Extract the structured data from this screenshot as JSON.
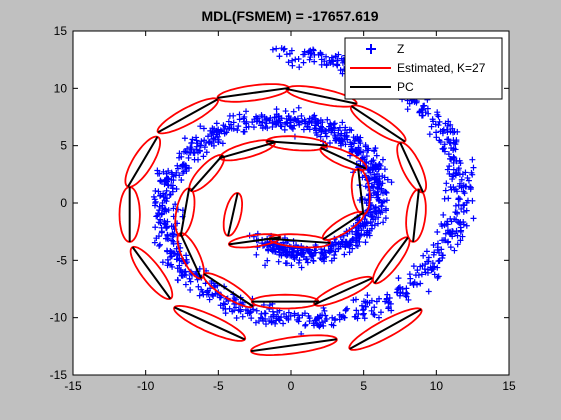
{
  "chart_data": {
    "type": "scatter",
    "title": "MDL(FSMEM) = -17657.619",
    "xlabel": "",
    "ylabel": "",
    "xlim": [
      -15,
      15
    ],
    "ylim": [
      -15,
      15
    ],
    "xticks": [
      -15,
      -10,
      -5,
      0,
      5,
      10,
      15
    ],
    "yticks": [
      -15,
      -10,
      -5,
      0,
      5,
      10,
      15
    ],
    "grid": false,
    "legend_position": "top-right",
    "legend": [
      "Z",
      "Estimated, K=27",
      "PC"
    ],
    "colors": {
      "background": "#c0c0c0",
      "axes_bg": "#ffffff",
      "points": "#0000ff",
      "ellipses": "#ff0000",
      "pc": "#000000"
    },
    "series": [
      {
        "name": "Z",
        "kind": "points",
        "description_of_shape": "noisy double spiral (swiss roll) of ~1500 points, radius from about 2 to 13",
        "spiral": {
          "t_start": 4.2,
          "t_end": 14.2,
          "radius_per_rad": 0.92,
          "noise": 0.45,
          "count": 1500
        }
      },
      {
        "name": "Estimated, K=27",
        "kind": "ellipses",
        "components": [
          {
            "cx": -4.0,
            "cy": -1.0,
            "a": 1.9,
            "b": 0.55,
            "deg": 80
          },
          {
            "cx": -2.5,
            "cy": -3.3,
            "a": 1.8,
            "b": 0.5,
            "deg": 10
          },
          {
            "cx": 0.6,
            "cy": -3.3,
            "a": 2.1,
            "b": 0.55,
            "deg": -5
          },
          {
            "cx": 3.6,
            "cy": -2.0,
            "a": 1.8,
            "b": 0.55,
            "deg": 40
          },
          {
            "cx": 4.8,
            "cy": 1.0,
            "a": 2.0,
            "b": 0.6,
            "deg": 95
          },
          {
            "cx": 3.6,
            "cy": 3.9,
            "a": 1.8,
            "b": 0.6,
            "deg": 150
          },
          {
            "cx": 0.4,
            "cy": 5.2,
            "a": 2.1,
            "b": 0.6,
            "deg": 175
          },
          {
            "cx": -3.0,
            "cy": 4.6,
            "a": 2.0,
            "b": 0.6,
            "deg": 200
          },
          {
            "cx": -5.8,
            "cy": 2.6,
            "a": 1.9,
            "b": 0.6,
            "deg": 235
          },
          {
            "cx": -7.3,
            "cy": -0.8,
            "a": 2.1,
            "b": 0.6,
            "deg": 262
          },
          {
            "cx": -6.9,
            "cy": -4.6,
            "a": 2.1,
            "b": 0.6,
            "deg": 290
          },
          {
            "cx": -4.3,
            "cy": -7.6,
            "a": 2.2,
            "b": 0.6,
            "deg": 320
          },
          {
            "cx": -0.4,
            "cy": -8.6,
            "a": 2.3,
            "b": 0.6,
            "deg": 0
          },
          {
            "cx": 3.6,
            "cy": -7.7,
            "a": 2.3,
            "b": 0.6,
            "deg": 30
          },
          {
            "cx": 6.9,
            "cy": -5.0,
            "a": 2.3,
            "b": 0.6,
            "deg": 60
          },
          {
            "cx": 8.6,
            "cy": -1.1,
            "a": 2.3,
            "b": 0.65,
            "deg": 85
          },
          {
            "cx": 8.3,
            "cy": 3.1,
            "a": 2.3,
            "b": 0.65,
            "deg": 110
          },
          {
            "cx": 6.0,
            "cy": 6.9,
            "a": 2.4,
            "b": 0.65,
            "deg": 140
          },
          {
            "cx": 2.1,
            "cy": 9.3,
            "a": 2.5,
            "b": 0.65,
            "deg": 165
          },
          {
            "cx": -2.6,
            "cy": 9.6,
            "a": 2.5,
            "b": 0.65,
            "deg": 190
          },
          {
            "cx": -7.1,
            "cy": 7.6,
            "a": 2.5,
            "b": 0.65,
            "deg": 215
          },
          {
            "cx": -10.2,
            "cy": 3.6,
            "a": 2.4,
            "b": 0.7,
            "deg": 245
          },
          {
            "cx": -11.1,
            "cy": -1.0,
            "a": 2.4,
            "b": 0.7,
            "deg": 270
          },
          {
            "cx": -9.6,
            "cy": -6.1,
            "a": 2.6,
            "b": 0.7,
            "deg": 300
          },
          {
            "cx": -5.6,
            "cy": -10.5,
            "a": 2.8,
            "b": 0.7,
            "deg": 330
          },
          {
            "cx": 0.2,
            "cy": -12.4,
            "a": 3.0,
            "b": 0.7,
            "deg": 10
          },
          {
            "cx": 6.5,
            "cy": -11.0,
            "a": 3.0,
            "b": 0.7,
            "deg": 35
          }
        ]
      },
      {
        "name": "PC",
        "kind": "segments",
        "description": "principal axis of each ellipse, drawn as a black segment"
      }
    ]
  }
}
